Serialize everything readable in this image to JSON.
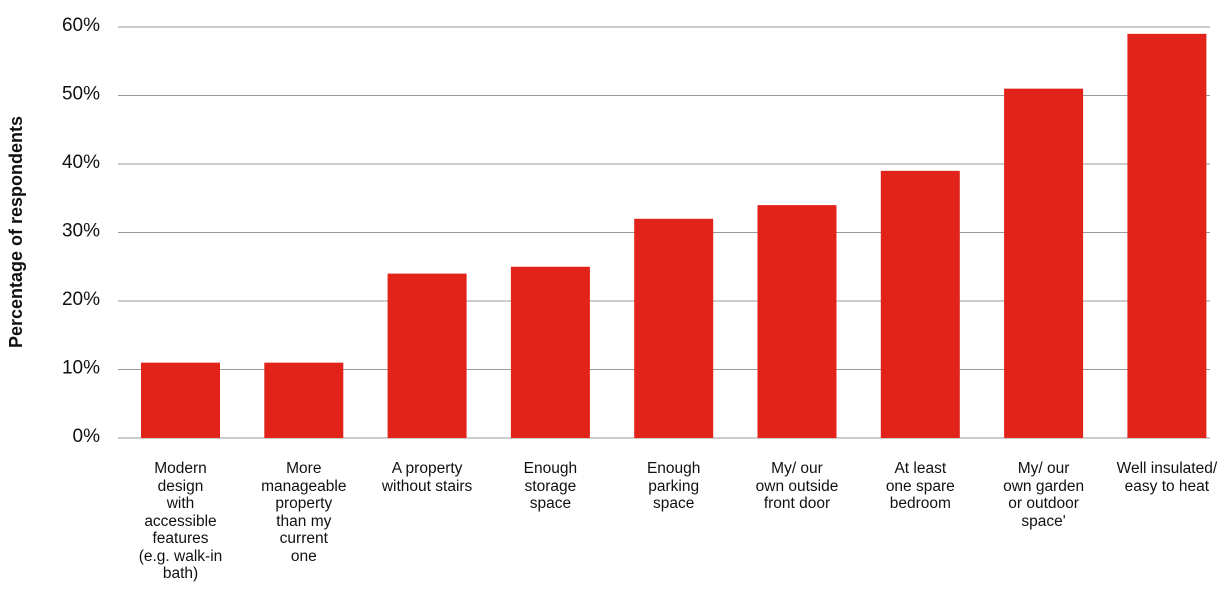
{
  "chart_data": {
    "type": "bar",
    "title": "",
    "xlabel": "",
    "ylabel": "Percentage of respondents",
    "ylim": [
      0,
      60
    ],
    "y_ticks": [
      "0%",
      "10%",
      "20%",
      "30%",
      "40%",
      "50%",
      "60%"
    ],
    "grid": true,
    "bar_color": "#e2231a",
    "categories": [
      "Modern\ndesign\nwith\naccessible\nfeatures\n(e.g. walk-in\nbath)",
      "More\nmanageable\nproperty\nthan my\ncurrent\none",
      "A property\nwithout stairs",
      "Enough\nstorage\nspace",
      "Enough\nparking\nspace",
      "My/ our\nown outside\nfront door",
      "At least\none spare\nbedroom",
      "My/ our\nown garden\nor outdoor\nspace'",
      "Well insulated/\neasy to heat"
    ],
    "values": [
      11,
      11,
      24,
      25,
      32,
      34,
      39,
      51,
      59
    ]
  }
}
